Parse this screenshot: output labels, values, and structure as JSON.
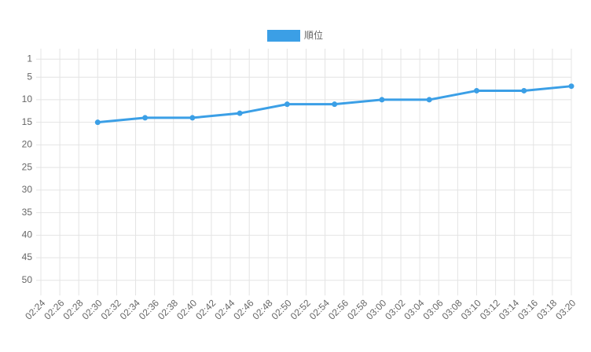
{
  "chart_data": {
    "type": "line",
    "series": [
      {
        "name": "順位",
        "color": "#3b9fe6",
        "x": [
          "02:30",
          "02:35",
          "02:40",
          "02:45",
          "02:50",
          "02:55",
          "03:00",
          "03:05",
          "03:10",
          "03:15",
          "03:20"
        ],
        "values": [
          15,
          14,
          14,
          13,
          11,
          11,
          10,
          10,
          8,
          8,
          7
        ]
      }
    ],
    "xlim": [
      "02:24",
      "03:20"
    ],
    "xticks": [
      "02:24",
      "02:26",
      "02:28",
      "02:30",
      "02:32",
      "02:34",
      "02:36",
      "02:38",
      "02:40",
      "02:42",
      "02:44",
      "02:46",
      "02:48",
      "02:50",
      "02:52",
      "02:54",
      "02:56",
      "02:58",
      "03:00",
      "03:02",
      "03:04",
      "03:06",
      "03:08",
      "03:10",
      "03:12",
      "03:14",
      "03:16",
      "03:18",
      "03:20"
    ],
    "ylim": [
      -1.3,
      52.3
    ],
    "y_reverse": true,
    "yticks": [
      1,
      5,
      10,
      15,
      20,
      25,
      30,
      35,
      40,
      45,
      50
    ],
    "grid": true,
    "legend": "top"
  }
}
